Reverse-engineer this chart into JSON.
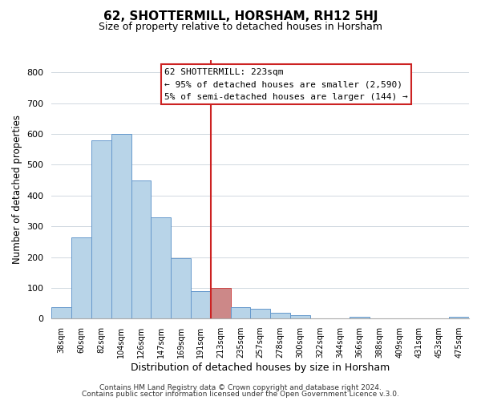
{
  "title": "62, SHOTTERMILL, HORSHAM, RH12 5HJ",
  "subtitle": "Size of property relative to detached houses in Horsham",
  "xlabel": "Distribution of detached houses by size in Horsham",
  "ylabel": "Number of detached properties",
  "bar_labels": [
    "38sqm",
    "60sqm",
    "82sqm",
    "104sqm",
    "126sqm",
    "147sqm",
    "169sqm",
    "191sqm",
    "213sqm",
    "235sqm",
    "257sqm",
    "278sqm",
    "300sqm",
    "322sqm",
    "344sqm",
    "366sqm",
    "388sqm",
    "409sqm",
    "431sqm",
    "453sqm",
    "475sqm"
  ],
  "bar_heights": [
    38,
    265,
    580,
    600,
    450,
    330,
    195,
    90,
    100,
    38,
    32,
    20,
    10,
    0,
    0,
    5,
    0,
    0,
    0,
    0,
    5
  ],
  "bar_color": "#b8d4e8",
  "bar_edge_color": "#6699cc",
  "highlight_bar_index": 8,
  "highlight_bar_color": "#cc8888",
  "highlight_bar_edge_color": "#cc4444",
  "vline_color": "#cc2222",
  "ylim": [
    0,
    840
  ],
  "yticks": [
    0,
    100,
    200,
    300,
    400,
    500,
    600,
    700,
    800
  ],
  "annotation_title": "62 SHOTTERMILL: 223sqm",
  "annotation_line1": "← 95% of detached houses are smaller (2,590)",
  "annotation_line2": "5% of semi-detached houses are larger (144) →",
  "footer1": "Contains HM Land Registry data © Crown copyright and database right 2024.",
  "footer2": "Contains public sector information licensed under the Open Government Licence v.3.0.",
  "background_color": "#ffffff",
  "grid_color": "#d0d8e0"
}
